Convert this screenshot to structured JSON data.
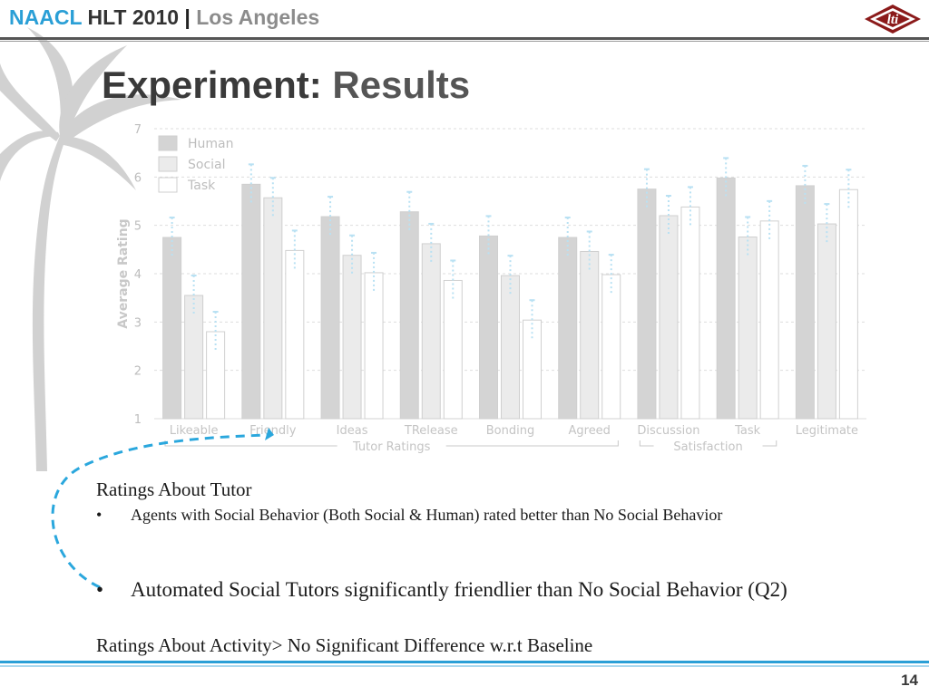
{
  "header": {
    "naacl": "NAACL",
    "hlt": "HLT 2010",
    "separator": "|",
    "location": "Los Angeles",
    "logo_text": "lti"
  },
  "title": {
    "bold": "Experiment:",
    "regular": "Results"
  },
  "chart_data": {
    "type": "bar",
    "ylabel": "Average Rating",
    "ylim": [
      1,
      7
    ],
    "yticks": [
      1,
      2,
      3,
      4,
      5,
      6,
      7
    ],
    "categories": [
      "Likeable",
      "Friendly",
      "Ideas",
      "TRelease",
      "Bonding",
      "Agreed",
      "Discussion",
      "Task",
      "Legitimate"
    ],
    "series": [
      {
        "name": "Human",
        "color": "#d4d4d4",
        "values": [
          4.75,
          5.85,
          5.18,
          5.28,
          4.78,
          4.75,
          5.75,
          5.98,
          5.82
        ]
      },
      {
        "name": "Social",
        "color": "#ebebeb",
        "values": [
          3.55,
          5.57,
          4.38,
          4.62,
          3.96,
          4.46,
          5.2,
          4.76,
          5.03
        ]
      },
      {
        "name": "Task",
        "color": "#ffffff",
        "values": [
          2.8,
          4.48,
          4.02,
          3.86,
          3.04,
          3.98,
          5.38,
          5.09,
          5.74
        ]
      }
    ],
    "groups": [
      {
        "label": "Tutor Ratings"
      },
      {
        "label": "Satisfaction"
      }
    ],
    "legend": "top-left",
    "grid": true
  },
  "text": {
    "heading1": "Ratings About Tutor",
    "bullet1": "Agents with Social Behavior  (Both Social & Human) rated better than No Social Behavior",
    "bullet2": "Automated Social Tutors significantly friendlier than No Social Behavior (Q2)",
    "heading2": "Ratings About Activity> No Significant Difference w.r.t Baseline",
    "bullet_symbol": "•"
  },
  "page_number": "14"
}
